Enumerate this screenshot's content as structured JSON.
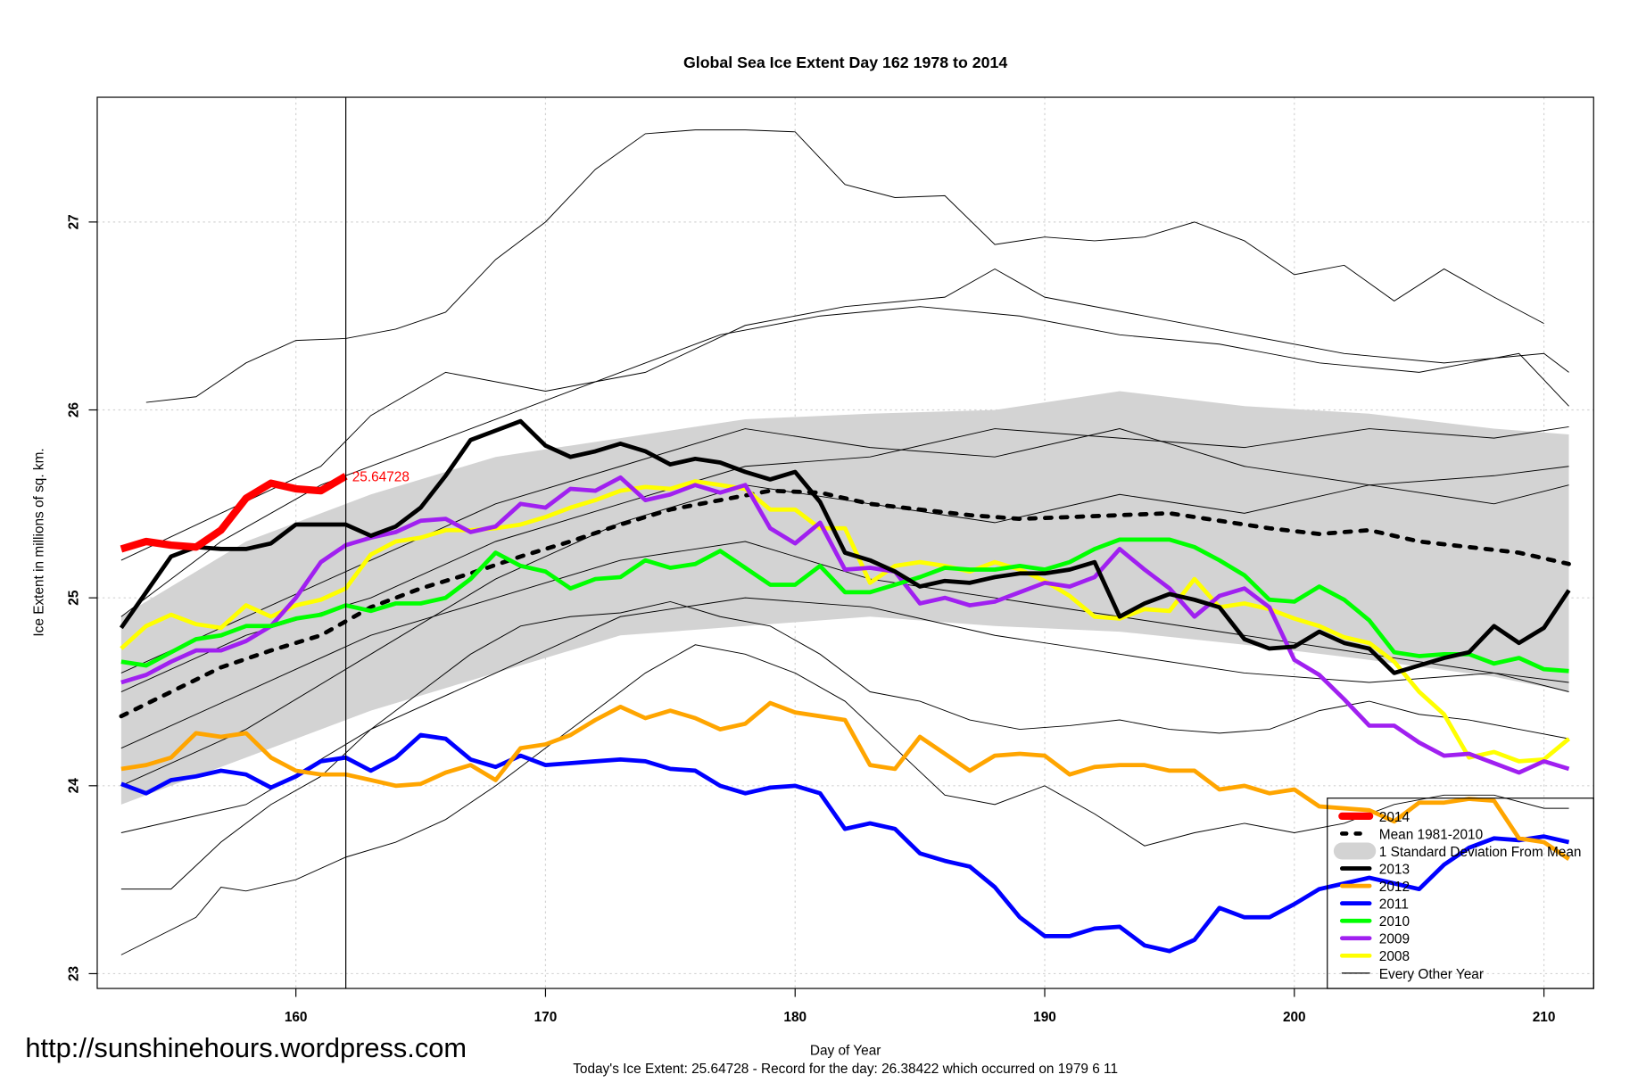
{
  "chart_data": {
    "type": "line",
    "title": "Global Sea Ice Extent Day 162 1978 to 2014",
    "xlabel": "Day of Year",
    "ylabel": "Ice Extent in millions of sq. km.",
    "xlim": [
      153,
      211
    ],
    "ylim": [
      22.92,
      27.67
    ],
    "xticks": [
      160,
      170,
      180,
      190,
      200,
      210
    ],
    "yticks": [
      23,
      24,
      25,
      26,
      27
    ],
    "grid": true,
    "legend_position": "bottom-right",
    "marker_day": 162,
    "today_label": "25.64728",
    "footer": "Today's Ice Extent: 25.64728  - Record for the day: 26.38422 which occurred on 1979 6 11",
    "watermark": "http://sunshinehours.wordpress.com",
    "sd_band": {
      "name": "1 Standard Deviation From Mean",
      "color": "#d3d3d3",
      "x": [
        153,
        158,
        163,
        168,
        173,
        178,
        183,
        188,
        193,
        198,
        203,
        208,
        211
      ],
      "upper": [
        24.9,
        25.3,
        25.55,
        25.75,
        25.85,
        25.95,
        25.98,
        26.0,
        26.1,
        26.02,
        25.98,
        25.9,
        25.87
      ],
      "lower": [
        23.9,
        24.15,
        24.4,
        24.6,
        24.8,
        24.85,
        24.9,
        24.85,
        24.82,
        24.75,
        24.67,
        24.58,
        24.5
      ]
    },
    "other_years": {
      "name": "Every Other Year",
      "color": "#000000",
      "lines": [
        {
          "x": [
            154,
            156,
            158,
            160,
            162,
            164,
            166,
            168,
            170,
            172,
            174,
            176,
            178,
            180,
            182,
            184,
            186,
            188,
            190,
            192,
            194,
            196,
            198,
            200,
            202,
            204,
            206,
            208,
            210
          ],
          "y": [
            26.04,
            26.07,
            26.25,
            26.37,
            26.38,
            26.43,
            26.52,
            26.8,
            27.0,
            27.28,
            27.47,
            27.49,
            27.49,
            27.48,
            27.2,
            27.13,
            27.14,
            26.88,
            26.92,
            26.9,
            26.92,
            27.0,
            26.9,
            26.72,
            26.77,
            26.58,
            26.75,
            26.6,
            26.46
          ]
        },
        {
          "x": [
            153,
            156,
            157,
            158,
            160,
            162,
            164,
            166,
            168,
            170,
            172,
            174,
            176,
            178,
            180,
            182,
            184,
            186,
            188,
            190,
            192,
            194,
            196,
            198,
            200,
            202,
            204,
            206,
            208,
            210,
            211
          ],
          "y": [
            23.1,
            23.3,
            23.46,
            23.44,
            23.5,
            23.62,
            23.7,
            23.82,
            24.0,
            24.2,
            24.4,
            24.6,
            24.75,
            24.7,
            24.6,
            24.45,
            24.2,
            23.95,
            23.9,
            24.0,
            23.85,
            23.68,
            23.75,
            23.8,
            23.75,
            23.8,
            23.9,
            23.95,
            23.95,
            23.88,
            23.88
          ]
        },
        {
          "x": [
            153,
            155,
            157,
            159,
            161,
            163,
            165,
            167,
            169,
            171,
            173,
            175,
            177,
            179,
            181,
            183,
            185,
            187,
            189,
            191,
            193,
            195,
            197,
            199,
            201,
            203,
            205,
            207,
            209,
            211
          ],
          "y": [
            23.45,
            23.45,
            23.7,
            23.9,
            24.05,
            24.3,
            24.5,
            24.7,
            24.85,
            24.9,
            24.92,
            24.98,
            24.9,
            24.85,
            24.7,
            24.5,
            24.45,
            24.35,
            24.3,
            24.32,
            24.35,
            24.3,
            24.28,
            24.3,
            24.4,
            24.45,
            24.38,
            24.35,
            24.3,
            24.25
          ]
        },
        {
          "x": [
            153,
            157,
            161,
            163,
            166,
            170,
            174,
            178,
            182,
            186,
            188,
            190,
            194,
            198,
            202,
            206,
            210,
            211
          ],
          "y": [
            25.2,
            25.45,
            25.7,
            25.97,
            26.2,
            26.1,
            26.2,
            26.45,
            26.55,
            26.6,
            26.75,
            26.6,
            26.5,
            26.4,
            26.3,
            26.25,
            26.3,
            26.2
          ]
        },
        {
          "x": [
            153,
            157,
            161,
            165,
            169,
            173,
            177,
            181,
            185,
            189,
            193,
            197,
            201,
            205,
            209,
            211
          ],
          "y": [
            24.9,
            25.3,
            25.6,
            25.8,
            26.0,
            26.2,
            26.4,
            26.5,
            26.55,
            26.5,
            26.4,
            26.35,
            26.25,
            26.2,
            26.3,
            26.02
          ]
        },
        {
          "x": [
            153,
            158,
            163,
            168,
            173,
            178,
            183,
            188,
            193,
            198,
            203,
            208,
            211
          ],
          "y": [
            24.6,
            24.9,
            25.2,
            25.5,
            25.7,
            25.9,
            25.8,
            25.75,
            25.9,
            25.7,
            25.6,
            25.5,
            25.6
          ]
        },
        {
          "x": [
            153,
            158,
            163,
            168,
            173,
            178,
            183,
            188,
            193,
            198,
            203,
            208,
            211
          ],
          "y": [
            24.2,
            24.5,
            24.8,
            25.0,
            25.2,
            25.3,
            25.1,
            25.0,
            24.9,
            24.8,
            24.7,
            24.6,
            24.55
          ]
        },
        {
          "x": [
            153,
            158,
            163,
            168,
            173,
            178,
            183,
            188,
            193,
            198,
            203,
            208,
            211
          ],
          "y": [
            23.75,
            23.9,
            24.3,
            24.6,
            24.9,
            25.0,
            24.95,
            24.8,
            24.7,
            24.6,
            24.55,
            24.6,
            24.5
          ]
        },
        {
          "x": [
            153,
            158,
            163,
            168,
            173,
            178,
            183,
            188,
            193,
            198,
            203,
            208,
            211
          ],
          "y": [
            24.0,
            24.3,
            24.7,
            25.1,
            25.4,
            25.6,
            25.5,
            25.4,
            25.55,
            25.45,
            25.6,
            25.65,
            25.7
          ]
        },
        {
          "x": [
            153,
            158,
            163,
            168,
            173,
            178,
            183,
            188,
            193,
            198,
            203,
            208,
            211
          ],
          "y": [
            24.5,
            24.8,
            25.0,
            25.3,
            25.5,
            25.7,
            25.75,
            25.9,
            25.85,
            25.8,
            25.9,
            25.85,
            25.91
          ]
        }
      ]
    },
    "mean": {
      "name": "Mean 1981-2010",
      "color": "#000000",
      "x": [
        153,
        155,
        157,
        159,
        161,
        163,
        165,
        167,
        169,
        171,
        173,
        175,
        177,
        179,
        181,
        183,
        185,
        187,
        189,
        191,
        193,
        195,
        197,
        199,
        201,
        203,
        205,
        207,
        209,
        211
      ],
      "y": [
        24.37,
        24.5,
        24.63,
        24.72,
        24.8,
        24.95,
        25.05,
        25.13,
        25.22,
        25.3,
        25.39,
        25.47,
        25.52,
        25.57,
        25.56,
        25.5,
        25.47,
        25.44,
        25.42,
        25.43,
        25.44,
        25.45,
        25.41,
        25.37,
        25.34,
        25.36,
        25.3,
        25.27,
        25.24,
        25.18
      ]
    },
    "x_days": [
      153,
      154,
      155,
      156,
      157,
      158,
      159,
      160,
      161,
      162,
      163,
      164,
      165,
      166,
      167,
      168,
      169,
      170,
      171,
      172,
      173,
      174,
      175,
      176,
      177,
      178,
      179,
      180,
      181,
      182,
      183,
      184,
      185,
      186,
      187,
      188,
      189,
      190,
      191,
      192,
      193,
      194,
      195,
      196,
      197,
      198,
      199,
      200,
      201,
      202,
      203,
      204,
      205,
      206,
      207,
      208,
      209,
      210,
      211
    ],
    "series": [
      {
        "name": "2008",
        "color": "#ffff00",
        "values": [
          24.73,
          24.85,
          24.91,
          24.86,
          24.84,
          24.96,
          24.9,
          24.96,
          24.99,
          25.05,
          25.23,
          25.3,
          25.32,
          25.36,
          25.36,
          25.37,
          25.39,
          25.43,
          25.48,
          25.52,
          25.57,
          25.59,
          25.58,
          25.62,
          25.6,
          25.58,
          25.47,
          25.47,
          25.37,
          25.37,
          25.08,
          25.17,
          25.19,
          25.17,
          25.14,
          25.19,
          25.15,
          25.09,
          25.01,
          24.9,
          24.89,
          24.94,
          24.93,
          25.1,
          24.95,
          24.97,
          24.94,
          24.89,
          24.85,
          24.79,
          24.76,
          24.66,
          24.5,
          24.38,
          24.15,
          24.18,
          24.13,
          24.14,
          24.25
        ]
      },
      {
        "name": "2009",
        "color": "#a020f0",
        "values": [
          24.55,
          24.59,
          24.66,
          24.72,
          24.72,
          24.77,
          24.85,
          25.0,
          25.19,
          25.28,
          25.32,
          25.35,
          25.41,
          25.42,
          25.35,
          25.38,
          25.5,
          25.48,
          25.58,
          25.57,
          25.64,
          25.52,
          25.55,
          25.6,
          25.56,
          25.6,
          25.37,
          25.29,
          25.4,
          25.15,
          25.16,
          25.14,
          24.97,
          25.0,
          24.96,
          24.98,
          25.03,
          25.08,
          25.06,
          25.11,
          25.26,
          25.15,
          25.05,
          24.9,
          25.01,
          25.05,
          24.95,
          24.67,
          24.59,
          24.46,
          24.32,
          24.32,
          24.23,
          24.16,
          24.17,
          24.12,
          24.07,
          24.13,
          24.09
        ]
      },
      {
        "name": "2010",
        "color": "#00ff00",
        "values": [
          24.66,
          24.64,
          24.71,
          24.78,
          24.8,
          24.85,
          24.85,
          24.89,
          24.91,
          24.96,
          24.93,
          24.97,
          24.97,
          25.0,
          25.1,
          25.24,
          25.17,
          25.14,
          25.05,
          25.1,
          25.11,
          25.2,
          25.16,
          25.18,
          25.25,
          25.16,
          25.07,
          25.07,
          25.17,
          25.03,
          25.03,
          25.07,
          25.11,
          25.16,
          25.15,
          25.15,
          25.17,
          25.15,
          25.19,
          25.26,
          25.31,
          25.31,
          25.31,
          25.27,
          25.2,
          25.12,
          24.99,
          24.98,
          25.06,
          24.99,
          24.88,
          24.71,
          24.69,
          24.7,
          24.7,
          24.65,
          24.68,
          24.62,
          24.61
        ]
      },
      {
        "name": "2011",
        "color": "#0000ff",
        "values": [
          24.01,
          23.96,
          24.03,
          24.05,
          24.08,
          24.06,
          23.99,
          24.05,
          24.13,
          24.15,
          24.08,
          24.15,
          24.27,
          24.25,
          24.14,
          24.1,
          24.16,
          24.11,
          24.12,
          24.13,
          24.14,
          24.13,
          24.09,
          24.08,
          24.0,
          23.96,
          23.99,
          24.0,
          23.96,
          23.77,
          23.8,
          23.77,
          23.64,
          23.6,
          23.57,
          23.46,
          23.3,
          23.2,
          23.2,
          23.24,
          23.25,
          23.15,
          23.12,
          23.18,
          23.35,
          23.3,
          23.3,
          23.37,
          23.45,
          23.48,
          23.51,
          23.48,
          23.45,
          23.58,
          23.67,
          23.72,
          23.71,
          23.73,
          23.7
        ]
      },
      {
        "name": "2012",
        "color": "#ffa500",
        "values": [
          24.09,
          24.11,
          24.15,
          24.28,
          24.26,
          24.28,
          24.15,
          24.08,
          24.06,
          24.06,
          24.03,
          24.0,
          24.01,
          24.07,
          24.11,
          24.03,
          24.2,
          24.22,
          24.27,
          24.35,
          24.42,
          24.36,
          24.4,
          24.36,
          24.3,
          24.33,
          24.44,
          24.39,
          24.37,
          24.35,
          24.11,
          24.09,
          24.26,
          24.17,
          24.08,
          24.16,
          24.17,
          24.16,
          24.06,
          24.1,
          24.11,
          24.11,
          24.08,
          24.08,
          23.98,
          24.0,
          23.96,
          23.98,
          23.89,
          23.88,
          23.87,
          23.81,
          23.91,
          23.91,
          23.93,
          23.92,
          23.72,
          23.7,
          23.61
        ]
      },
      {
        "name": "2013",
        "color": "#000000",
        "values": [
          24.84,
          25.03,
          25.22,
          25.27,
          25.26,
          25.26,
          25.29,
          25.39,
          25.39,
          25.39,
          25.33,
          25.38,
          25.48,
          25.65,
          25.84,
          25.89,
          25.94,
          25.81,
          25.75,
          25.78,
          25.82,
          25.78,
          25.71,
          25.74,
          25.72,
          25.67,
          25.63,
          25.67,
          25.51,
          25.24,
          25.2,
          25.14,
          25.06,
          25.09,
          25.08,
          25.11,
          25.13,
          25.13,
          25.15,
          25.19,
          24.9,
          24.97,
          25.02,
          24.99,
          24.95,
          24.78,
          24.73,
          24.74,
          24.82,
          24.76,
          24.73,
          24.6,
          24.64,
          24.68,
          24.71,
          24.85,
          24.76,
          24.84,
          25.04
        ]
      },
      {
        "name": "2014",
        "color": "#ff0000",
        "values": [
          25.26,
          25.3,
          25.28,
          25.27,
          25.36,
          25.53,
          25.61,
          25.58,
          25.57,
          25.64728
        ]
      }
    ],
    "legend": [
      {
        "label": "2014",
        "color": "#ff0000",
        "style": "thick"
      },
      {
        "label": "Mean 1981-2010",
        "color": "#000000",
        "style": "dashed"
      },
      {
        "label": "1 Standard Deviation From Mean",
        "color": "#d3d3d3",
        "style": "band"
      },
      {
        "label": "2013",
        "color": "#000000",
        "style": "line"
      },
      {
        "label": "2012",
        "color": "#ffa500",
        "style": "line"
      },
      {
        "label": "2011",
        "color": "#0000ff",
        "style": "line"
      },
      {
        "label": "2010",
        "color": "#00ff00",
        "style": "line"
      },
      {
        "label": "2009",
        "color": "#a020f0",
        "style": "line"
      },
      {
        "label": "2008",
        "color": "#ffff00",
        "style": "line"
      },
      {
        "label": "Every Other Year",
        "color": "#000000",
        "style": "thin"
      }
    ]
  }
}
